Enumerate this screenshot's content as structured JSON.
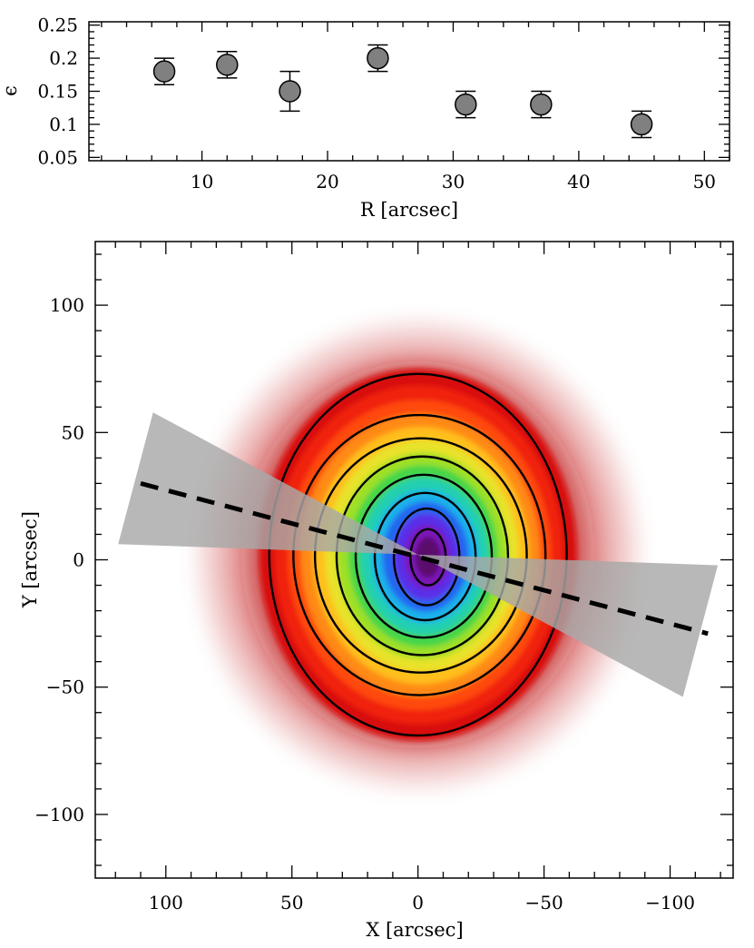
{
  "chart_data": [
    {
      "type": "scatter",
      "name": "ellipticity-profile",
      "xlabel": "R [arcsec]",
      "ylabel": "ϵ",
      "xlim": [
        1,
        52
      ],
      "ylim": [
        0.045,
        0.255
      ],
      "xticks": [
        10,
        20,
        30,
        40,
        50
      ],
      "yticks": [
        0.05,
        0.1,
        0.15,
        0.2,
        0.25
      ],
      "ytick_labels": [
        "0.05",
        "0.1",
        "0.15",
        "0.2",
        "0.25"
      ],
      "series": [
        {
          "name": "ellipticity",
          "x": [
            7,
            12,
            17,
            24,
            31,
            37,
            45
          ],
          "y": [
            0.18,
            0.19,
            0.15,
            0.2,
            0.13,
            0.13,
            0.1
          ],
          "yerr": [
            0.02,
            0.02,
            0.03,
            0.02,
            0.02,
            0.02,
            0.02
          ]
        }
      ],
      "marker_color": "#808080"
    },
    {
      "type": "heatmap",
      "name": "density-map",
      "xlabel": "X [arcsec]",
      "ylabel": "Y [arcsec]",
      "xlim": [
        128,
        -125
      ],
      "ylim": [
        -125,
        125
      ],
      "xticks": [
        100,
        50,
        0,
        -50,
        -100
      ],
      "xtick_labels": [
        "100",
        "50",
        "0",
        "−50",
        "−100"
      ],
      "yticks": [
        100,
        50,
        0,
        -50,
        -100
      ],
      "ytick_labels": [
        "100",
        "50",
        "0",
        "−50",
        "−100"
      ],
      "center": [
        0,
        2
      ],
      "contours": [
        {
          "rx": 59,
          "ry": 71
        },
        {
          "rx": 50,
          "ry": 55
        },
        {
          "rx": 42,
          "ry": 46
        },
        {
          "rx": 34,
          "ry": 39
        },
        {
          "rx": 27,
          "ry": 32
        },
        {
          "rx": 20,
          "ry": 25
        },
        {
          "rx": 13,
          "ry": 19
        },
        {
          "rx": 7,
          "ry": 11
        }
      ],
      "color_levels": [
        "#5a0a6a",
        "#7b16b8",
        "#5a2ee8",
        "#2466f0",
        "#1fb2ea",
        "#23d0b0",
        "#44d64a",
        "#9ee025",
        "#e8e22a",
        "#ffbf1e",
        "#ff8a12",
        "#ff4a0a",
        "#f02010",
        "#d80a0a"
      ],
      "halo_color": "#c01010",
      "wedge": {
        "pa_deg": 75,
        "half_opening_deg": 13,
        "length": 119,
        "color": "#a8a8a8"
      },
      "major_axis": {
        "x1": 110,
        "y1": 30,
        "x2": -115,
        "y2": -29
      }
    }
  ]
}
